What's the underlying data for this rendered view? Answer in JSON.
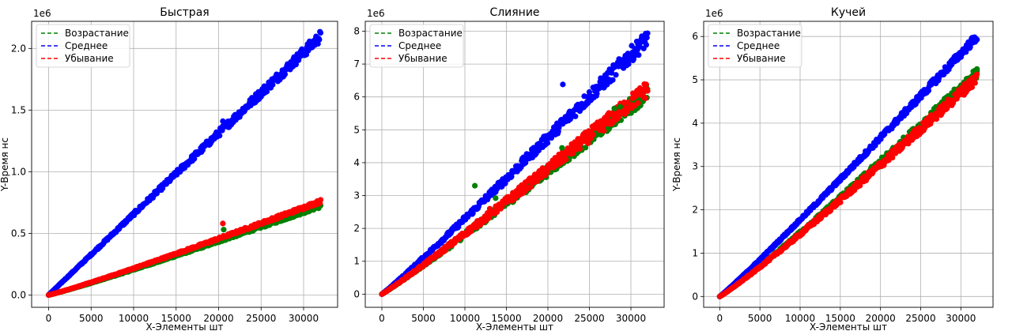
{
  "chart_data": [
    {
      "type": "scatter",
      "title": "Быстрая",
      "xlabel": "X-Элементы шт",
      "ylabel": "Y-Время нс",
      "y_multiplier": "1e6",
      "xlim": [
        -2000,
        34000
      ],
      "ylim": [
        -0.1,
        2.22
      ],
      "xticks": [
        0,
        5000,
        10000,
        15000,
        20000,
        25000,
        30000
      ],
      "yticks": [
        0.0,
        0.5,
        1.0,
        1.5,
        2.0
      ],
      "ytick_labels": [
        "0.0",
        "0.5",
        "1.0",
        "1.5",
        "2.0"
      ],
      "grid": true,
      "legend_position": "top-left",
      "series": [
        {
          "name": "Возрастание",
          "color": "#008000",
          "x": [
            0,
            32000
          ],
          "y": [
            0.0,
            0.72
          ],
          "exponent": 1.08,
          "noise": 0.005
        },
        {
          "name": "Среднее",
          "color": "#0000ff",
          "x": [
            0,
            32000
          ],
          "y": [
            0.0,
            2.1
          ],
          "exponent": 1.0,
          "noise": 0.02
        },
        {
          "name": "Убывание",
          "color": "#ff0000",
          "x": [
            0,
            32000
          ],
          "y": [
            0.0,
            0.76
          ],
          "exponent": 1.08,
          "noise": 0.006
        }
      ],
      "outliers": [
        {
          "series": 2,
          "x": 20500,
          "y": 0.58
        },
        {
          "series": 0,
          "x": 20600,
          "y": 0.53
        },
        {
          "series": 1,
          "x": 20500,
          "y": 1.41
        }
      ]
    },
    {
      "type": "scatter",
      "title": "Слияние",
      "xlabel": "X-Элементы шт",
      "ylabel": "",
      "y_multiplier": "1e6",
      "xlim": [
        -2000,
        34000
      ],
      "ylim": [
        -0.4,
        8.3
      ],
      "xticks": [
        0,
        5000,
        10000,
        15000,
        20000,
        25000,
        30000
      ],
      "yticks": [
        0,
        1,
        2,
        3,
        4,
        5,
        6,
        7,
        8
      ],
      "ytick_labels": [
        "0",
        "1",
        "2",
        "3",
        "4",
        "5",
        "6",
        "7",
        "8"
      ],
      "grid": true,
      "legend_position": "top-left",
      "series": [
        {
          "name": "Возрастание",
          "color": "#008000",
          "x": [
            0,
            32000
          ],
          "y": [
            0.0,
            6.15
          ],
          "exponent": 1.05,
          "noise": 0.03
        },
        {
          "name": "Среднее",
          "color": "#0000ff",
          "x": [
            0,
            32000
          ],
          "y": [
            0.0,
            7.8
          ],
          "exponent": 1.05,
          "noise": 0.03
        },
        {
          "name": "Убывание",
          "color": "#ff0000",
          "x": [
            0,
            32000
          ],
          "y": [
            0.0,
            6.25
          ],
          "exponent": 1.05,
          "noise": 0.03
        }
      ],
      "outliers": [
        {
          "series": 0,
          "x": 11200,
          "y": 3.3
        },
        {
          "series": 0,
          "x": 13700,
          "y": 2.92
        },
        {
          "series": 1,
          "x": 21800,
          "y": 6.38
        },
        {
          "series": 0,
          "x": 21700,
          "y": 4.45
        },
        {
          "series": 0,
          "x": 28000,
          "y": 5.65
        },
        {
          "series": 0,
          "x": 28700,
          "y": 5.7
        },
        {
          "series": 2,
          "x": 13000,
          "y": 2.6
        }
      ]
    },
    {
      "type": "scatter",
      "title": "Кучей",
      "xlabel": "X-Элементы шт",
      "ylabel": "Y-Время нс",
      "y_multiplier": "1e6",
      "xlim": [
        -2000,
        34000
      ],
      "ylim": [
        -0.25,
        6.35
      ],
      "xticks": [
        0,
        5000,
        10000,
        15000,
        20000,
        25000,
        30000
      ],
      "yticks": [
        0,
        1,
        2,
        3,
        4,
        5,
        6
      ],
      "ytick_labels": [
        "0",
        "1",
        "2",
        "3",
        "4",
        "5",
        "6"
      ],
      "grid": true,
      "legend_position": "top-left",
      "series": [
        {
          "name": "Возрастание",
          "color": "#008000",
          "x": [
            0,
            32000
          ],
          "y": [
            0.0,
            5.15
          ],
          "exponent": 1.08,
          "noise": 0.02
        },
        {
          "name": "Среднее",
          "color": "#0000ff",
          "x": [
            0,
            32000
          ],
          "y": [
            0.0,
            6.0
          ],
          "exponent": 1.05,
          "noise": 0.015
        },
        {
          "name": "Убывание",
          "color": "#ff0000",
          "x": [
            0,
            32000
          ],
          "y": [
            0.0,
            5.05
          ],
          "exponent": 1.08,
          "noise": 0.02
        }
      ],
      "outliers": [
        {
          "series": 0,
          "x": 32000,
          "y": 5.25
        }
      ]
    }
  ]
}
